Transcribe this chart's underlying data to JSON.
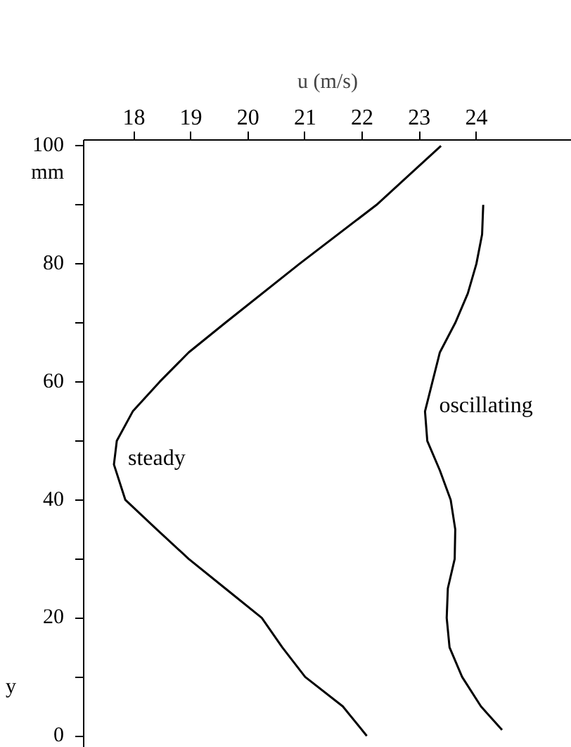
{
  "chart_data": {
    "type": "line",
    "xlabel": "u (m/s)",
    "ylabel": "y",
    "annotations": [
      "mm"
    ],
    "xlim": [
      17.12,
      25.67
    ],
    "ylim": [
      -2,
      101
    ],
    "xticks": [
      18,
      19,
      20,
      21,
      22,
      23,
      24
    ],
    "yticks": [
      0,
      {
        "value": 10,
        "label": null
      },
      20,
      {
        "value": 30,
        "label": null
      },
      40,
      {
        "value": 50,
        "label": null
      },
      60,
      {
        "value": 70,
        "label": null
      },
      80,
      {
        "value": 90,
        "label": null
      },
      100
    ],
    "grid": false,
    "line_style": "solid",
    "marker": "none",
    "series": [
      {
        "name": "steady",
        "color": "#000000",
        "x": [
          22.08,
          21.66,
          21.0,
          20.6,
          20.24,
          19.6,
          18.96,
          18.4,
          17.85,
          17.65,
          17.7,
          17.98,
          18.45,
          18.96,
          19.6,
          20.9,
          22.25,
          23.38
        ],
        "values": [
          0,
          5,
          10,
          15,
          20,
          25,
          30,
          35,
          40,
          46,
          50,
          55,
          60,
          65,
          70,
          80,
          90,
          100
        ]
      },
      {
        "name": "oscillating",
        "color": "#000000",
        "x": [
          24.45,
          24.08,
          23.75,
          23.53,
          23.48,
          23.5,
          23.62,
          23.63,
          23.55,
          23.36,
          23.14,
          23.1,
          23.23,
          23.36,
          23.63,
          23.85,
          24.0,
          24.1,
          24.12
        ],
        "values": [
          1,
          5,
          10,
          15,
          20,
          25,
          30,
          35,
          40,
          45,
          50,
          55,
          60,
          65,
          70,
          75,
          80,
          85,
          90
        ]
      }
    ]
  }
}
